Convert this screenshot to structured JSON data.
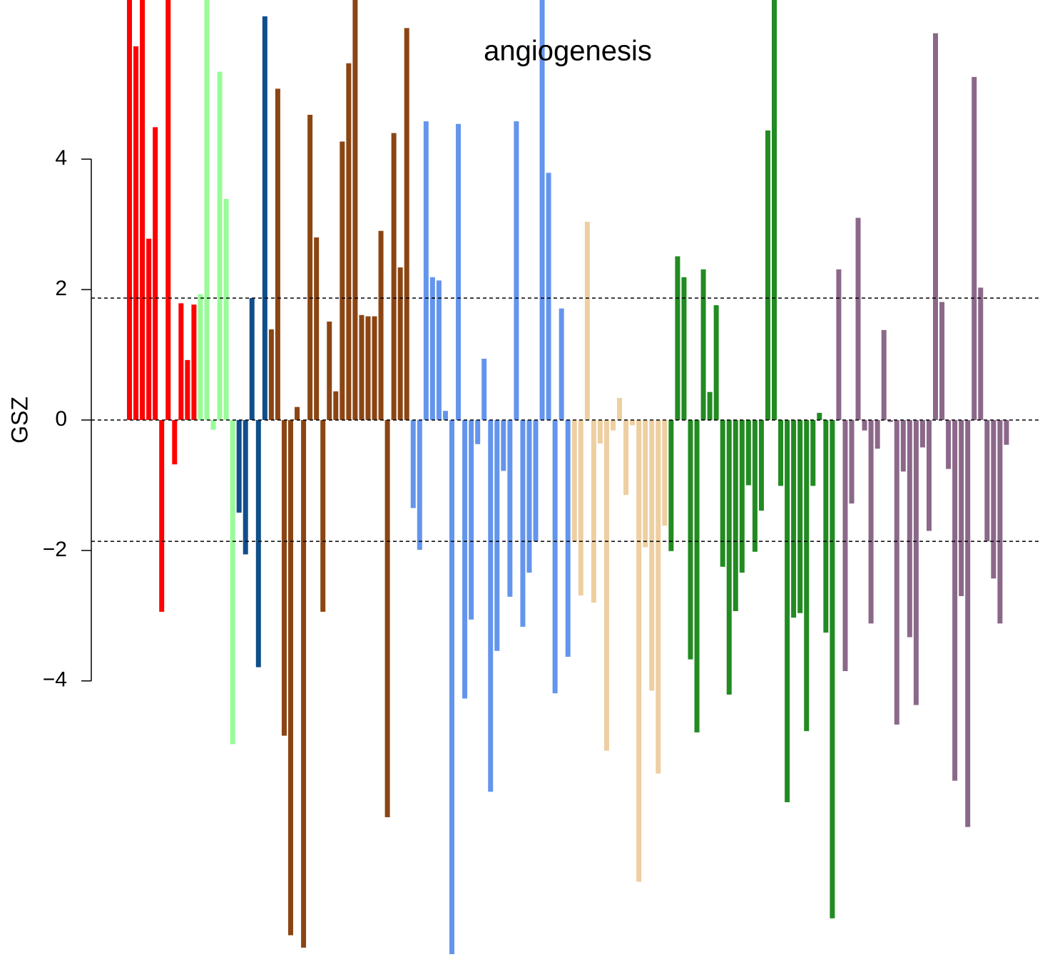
{
  "chart_data": {
    "type": "bar",
    "title": "angiogenesis",
    "ylabel": "GSZ",
    "ylim": [
      -8.31,
      6.44
    ],
    "yticks": [
      4,
      2,
      0,
      {
        "value": -2,
        "label": "−2"
      },
      {
        "value": -4,
        "label": "−4"
      }
    ],
    "hlines": [
      1.87,
      0,
      -1.86
    ],
    "series": [
      {
        "color": "#ff0000",
        "values": [
          7,
          5.73,
          7,
          2.78,
          4.49,
          -2.94,
          7,
          -0.68,
          1.79,
          0.92,
          1.77
        ]
      },
      {
        "color": "#98fb98",
        "values": [
          1.93,
          7,
          -0.15,
          5.34,
          3.39,
          -4.97
        ]
      },
      {
        "color": "#104e8b",
        "values": [
          -1.42,
          -2.06,
          1.87,
          -3.79,
          6.19
        ]
      },
      {
        "color": "#8b4513",
        "values": [
          1.39,
          5.08,
          -4.84,
          -7.9,
          0.2,
          -8.09,
          4.68,
          2.8,
          -2.94,
          1.51,
          0.44,
          4.27,
          5.47,
          7,
          1.61,
          1.59,
          1.59,
          2.9,
          -6.09,
          4.4,
          2.34,
          6.01
        ]
      },
      {
        "color": "#6495ed",
        "values": [
          -1.35,
          -1.99,
          4.58,
          2.19,
          2.14,
          0.14,
          -8.19,
          4.54,
          -4.27,
          -3.06,
          -0.37,
          0.94,
          -5.7,
          -3.54,
          -0.78,
          -2.71,
          4.58,
          -3.17,
          -2.34,
          -1.86,
          7,
          3.79,
          -4.19,
          1.71,
          -3.63
        ]
      },
      {
        "color": "#eecfa1",
        "values": [
          -1.86,
          -2.69,
          3.04,
          -2.8,
          -0.36,
          -5.07,
          -0.16,
          0.34,
          -1.15,
          -0.08,
          -7.08,
          -1.95,
          -4.15,
          -5.42,
          -1.62
        ]
      },
      {
        "color": "#228b22",
        "values": [
          -2.01,
          2.51,
          2.19,
          -3.67,
          -4.79,
          2.31,
          0.43,
          1.76,
          -2.25,
          -4.21,
          -2.93,
          -2.34,
          -1.0,
          -2.02,
          -1.39,
          4.44,
          7,
          -1.01,
          -5.86,
          -3.03,
          -2.96,
          -4.77,
          -1.01,
          0.11,
          -3.26,
          -7.64
        ]
      },
      {
        "color": "#8b6889",
        "values": [
          2.31,
          -3.85,
          -1.28,
          3.1,
          -0.16,
          -3.12,
          -0.44,
          1.38,
          -0.03,
          -4.67,
          -0.79,
          -3.33,
          -4.37,
          -0.42,
          -1.7,
          5.93,
          1.81,
          -0.75,
          -5.53,
          -2.7,
          -6.24,
          5.26,
          2.03,
          -1.86,
          -2.43,
          -3.12,
          -0.38
        ]
      }
    ]
  }
}
